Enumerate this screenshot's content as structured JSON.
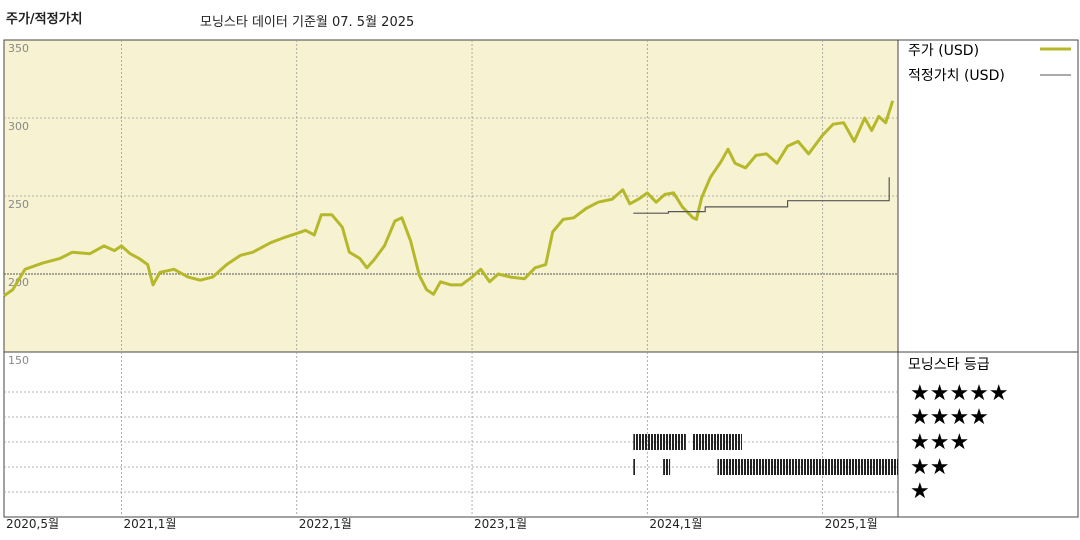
{
  "header": {
    "title": "주가/적정가치",
    "subtitle": "모닝스타 데이터 기준월 07. 5월 2025"
  },
  "legend": {
    "price_label": "주가 (USD)",
    "fair_value_label": "적정가치 (USD)",
    "rating_title": "모닝스타 등급",
    "stars": [
      "★★★★★",
      "★★★★",
      "★★★",
      "★★",
      "★"
    ]
  },
  "colors": {
    "price": "#b5b82a",
    "fair_value": "#555555",
    "chart_bg": "#f7f3d2",
    "grid": "#888888"
  },
  "chart_data": {
    "type": "line",
    "title": "주가/적정가치",
    "ylim": [
      150,
      350
    ],
    "y_ticks": [
      350,
      300,
      250,
      200,
      150
    ],
    "x_ticks": [
      {
        "label": "2020,5월",
        "t": 2020.33
      },
      {
        "label": "2021,1월",
        "t": 2021.0
      },
      {
        "label": "2022,1월",
        "t": 2022.0
      },
      {
        "label": "2023,1월",
        "t": 2023.0
      },
      {
        "label": "2024,1월",
        "t": 2024.0
      },
      {
        "label": "2025,1월",
        "t": 2025.0
      }
    ],
    "xlim": [
      2020.33,
      2025.43
    ],
    "series": [
      {
        "name": "주가 (USD)",
        "points": [
          [
            2020.33,
            186
          ],
          [
            2020.38,
            190
          ],
          [
            2020.45,
            203
          ],
          [
            2020.55,
            207
          ],
          [
            2020.65,
            210
          ],
          [
            2020.72,
            214
          ],
          [
            2020.82,
            213
          ],
          [
            2020.9,
            218
          ],
          [
            2020.96,
            215
          ],
          [
            2021.0,
            218
          ],
          [
            2021.05,
            213
          ],
          [
            2021.1,
            210
          ],
          [
            2021.15,
            206
          ],
          [
            2021.18,
            193
          ],
          [
            2021.22,
            201
          ],
          [
            2021.3,
            203
          ],
          [
            2021.38,
            198
          ],
          [
            2021.45,
            196
          ],
          [
            2021.52,
            198
          ],
          [
            2021.6,
            206
          ],
          [
            2021.68,
            212
          ],
          [
            2021.75,
            214
          ],
          [
            2021.85,
            220
          ],
          [
            2021.92,
            223
          ],
          [
            2022.0,
            226
          ],
          [
            2022.05,
            228
          ],
          [
            2022.1,
            225
          ],
          [
            2022.14,
            238
          ],
          [
            2022.2,
            238
          ],
          [
            2022.26,
            230
          ],
          [
            2022.3,
            214
          ],
          [
            2022.36,
            210
          ],
          [
            2022.4,
            204
          ],
          [
            2022.44,
            209
          ],
          [
            2022.5,
            218
          ],
          [
            2022.56,
            234
          ],
          [
            2022.6,
            236
          ],
          [
            2022.65,
            221
          ],
          [
            2022.7,
            199
          ],
          [
            2022.74,
            190
          ],
          [
            2022.78,
            187
          ],
          [
            2022.82,
            195
          ],
          [
            2022.88,
            193
          ],
          [
            2022.94,
            193
          ],
          [
            2023.0,
            198
          ],
          [
            2023.05,
            203
          ],
          [
            2023.1,
            195
          ],
          [
            2023.15,
            200
          ],
          [
            2023.22,
            198
          ],
          [
            2023.3,
            197
          ],
          [
            2023.36,
            204
          ],
          [
            2023.42,
            206
          ],
          [
            2023.46,
            227
          ],
          [
            2023.52,
            235
          ],
          [
            2023.58,
            236
          ],
          [
            2023.65,
            242
          ],
          [
            2023.72,
            246
          ],
          [
            2023.8,
            248
          ],
          [
            2023.86,
            254
          ],
          [
            2023.9,
            245
          ],
          [
            2023.95,
            248
          ],
          [
            2024.0,
            252
          ],
          [
            2024.05,
            246
          ],
          [
            2024.1,
            251
          ],
          [
            2024.15,
            252
          ],
          [
            2024.2,
            243
          ],
          [
            2024.26,
            236
          ],
          [
            2024.28,
            235
          ],
          [
            2024.31,
            249
          ],
          [
            2024.36,
            262
          ],
          [
            2024.42,
            272
          ],
          [
            2024.46,
            280
          ],
          [
            2024.5,
            271
          ],
          [
            2024.56,
            268
          ],
          [
            2024.62,
            276
          ],
          [
            2024.68,
            277
          ],
          [
            2024.74,
            271
          ],
          [
            2024.8,
            282
          ],
          [
            2024.86,
            285
          ],
          [
            2024.92,
            277
          ],
          [
            2025.0,
            289
          ],
          [
            2025.06,
            296
          ],
          [
            2025.12,
            297
          ],
          [
            2025.18,
            285
          ],
          [
            2025.24,
            300
          ],
          [
            2025.28,
            292
          ],
          [
            2025.32,
            301
          ],
          [
            2025.36,
            297
          ],
          [
            2025.4,
            311
          ]
        ]
      },
      {
        "name": "적정가치 (USD)",
        "points": [
          [
            2023.92,
            239
          ],
          [
            2024.12,
            239
          ],
          [
            2024.12,
            240
          ],
          [
            2024.33,
            240
          ],
          [
            2024.33,
            243
          ],
          [
            2024.8,
            243
          ],
          [
            2024.8,
            247
          ],
          [
            2025.38,
            247
          ],
          [
            2025.38,
            262
          ]
        ]
      }
    ],
    "rating_bars": [
      {
        "stars": 3,
        "start": 2023.92,
        "end": 2024.22
      },
      {
        "stars": 3,
        "start": 2024.26,
        "end": 2024.54
      },
      {
        "stars": 2,
        "start": 2023.92,
        "end": 2023.93
      },
      {
        "stars": 2,
        "start": 2024.09,
        "end": 2024.13
      },
      {
        "stars": 2,
        "start": 2024.4,
        "end": 2025.43
      }
    ]
  }
}
